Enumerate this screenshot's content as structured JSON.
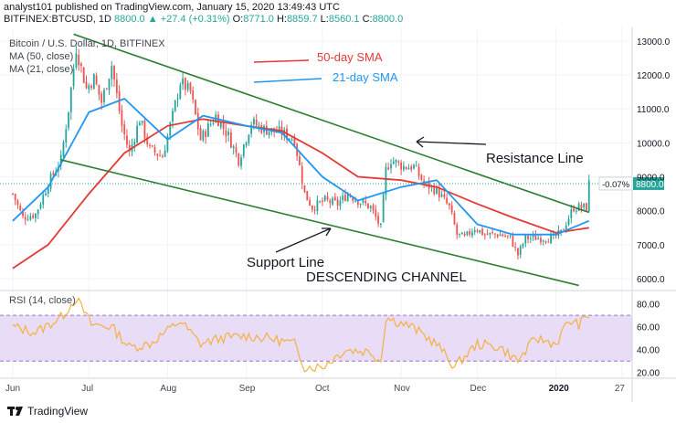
{
  "header": {
    "publish_line": "analyst101 published on TradingView.com, January 15, 2020 13:49:43 UTC",
    "ticker_line_prefix": "BITFINEX:BTCUSD, 1D",
    "last_price": "8800.0",
    "change": "▲ +27.4 (+0.31%)",
    "ohlc": {
      "o_label": "O:",
      "o": "8771.0",
      "h_label": "H:",
      "h": "8859.7",
      "l_label": "L:",
      "l": "8560.1",
      "c_label": "C:",
      "c": "8800.0"
    }
  },
  "legend": {
    "symbol": "Bitcoin / U.S. Dollar, 1D, BITFINEX",
    "ma50": "MA (50, close)",
    "ma21": "MA (21, close)",
    "rsi": "RSI (14, close)"
  },
  "annotations": {
    "sma50": "50-day SMA",
    "sma21": "21-day SMA",
    "resistance": "Resistance Line",
    "support": "Support Line",
    "channel": "DESCENDING CHANNEL"
  },
  "price_badge": {
    "pct": "-0.07%",
    "price": "8800.0"
  },
  "footer": {
    "brand": "TradingView"
  },
  "colors": {
    "up": "#26a69a",
    "down": "#ef5350",
    "sma50": "#e53935",
    "sma21": "#2196f3",
    "trend": "#2e7d32",
    "rsi_line": "#f5b041",
    "rsi_band": "#e8dcf7"
  },
  "chart_data": [
    {
      "type": "candlestick",
      "yaxis_ticks": [
        6000.0,
        7000.0,
        8000.0,
        9000.0,
        10000.0,
        11000.0,
        12000.0,
        13000.0
      ],
      "ylim": [
        5650,
        13400
      ],
      "xaxis_ticks": [
        "Jun",
        "Jul",
        "Aug",
        "Sep",
        "Oct",
        "Nov",
        "Dec",
        "2020",
        "27"
      ],
      "close_path": [
        [
          "2019-06-01",
          8500
        ],
        [
          "2019-06-05",
          7800
        ],
        [
          "2019-06-10",
          7900
        ],
        [
          "2019-06-15",
          8800
        ],
        [
          "2019-06-20",
          9500
        ],
        [
          "2019-06-23",
          11000
        ],
        [
          "2019-06-26",
          12800
        ],
        [
          "2019-06-30",
          11600
        ],
        [
          "2019-07-03",
          11900
        ],
        [
          "2019-07-06",
          11200
        ],
        [
          "2019-07-10",
          12300
        ],
        [
          "2019-07-14",
          10500
        ],
        [
          "2019-07-17",
          9700
        ],
        [
          "2019-07-21",
          10700
        ],
        [
          "2019-07-25",
          9800
        ],
        [
          "2019-07-30",
          9600
        ],
        [
          "2019-08-03",
          10800
        ],
        [
          "2019-08-06",
          11800
        ],
        [
          "2019-08-10",
          11500
        ],
        [
          "2019-08-14",
          10100
        ],
        [
          "2019-08-20",
          10800
        ],
        [
          "2019-08-25",
          10200
        ],
        [
          "2019-08-29",
          9500
        ],
        [
          "2019-09-03",
          10600
        ],
        [
          "2019-09-08",
          10400
        ],
        [
          "2019-09-15",
          10300
        ],
        [
          "2019-09-20",
          10100
        ],
        [
          "2019-09-24",
          8500
        ],
        [
          "2019-09-27",
          8100
        ],
        [
          "2019-10-02",
          8300
        ],
        [
          "2019-10-07",
          8200
        ],
        [
          "2019-10-11",
          8500
        ],
        [
          "2019-10-15",
          8300
        ],
        [
          "2019-10-20",
          8100
        ],
        [
          "2019-10-24",
          7500
        ],
        [
          "2019-10-26",
          9200
        ],
        [
          "2019-10-28",
          9500
        ],
        [
          "2019-11-02",
          9300
        ],
        [
          "2019-11-06",
          9300
        ],
        [
          "2019-11-10",
          8800
        ],
        [
          "2019-11-15",
          8600
        ],
        [
          "2019-11-20",
          8100
        ],
        [
          "2019-11-23",
          7300
        ],
        [
          "2019-11-26",
          7200
        ],
        [
          "2019-11-30",
          7500
        ],
        [
          "2019-12-04",
          7300
        ],
        [
          "2019-12-10",
          7300
        ],
        [
          "2019-12-14",
          7200
        ],
        [
          "2019-12-17",
          6700
        ],
        [
          "2019-12-20",
          7200
        ],
        [
          "2019-12-26",
          7200
        ],
        [
          "2019-12-31",
          7200
        ],
        [
          "2020-01-03",
          7350
        ],
        [
          "2020-01-06",
          7800
        ],
        [
          "2020-01-08",
          8100
        ],
        [
          "2020-01-11",
          8100
        ],
        [
          "2020-01-13",
          8100
        ],
        [
          "2020-01-14",
          8800
        ]
      ],
      "series": [
        {
          "name": "MA (50, close)",
          "points": [
            [
              "2019-06-01",
              6300
            ],
            [
              "2019-06-15",
              7000
            ],
            [
              "2019-07-01",
              8500
            ],
            [
              "2019-07-15",
              9700
            ],
            [
              "2019-08-01",
              10500
            ],
            [
              "2019-08-15",
              10700
            ],
            [
              "2019-09-01",
              10500
            ],
            [
              "2019-09-15",
              10350
            ],
            [
              "2019-10-01",
              9700
            ],
            [
              "2019-10-15",
              9000
            ],
            [
              "2019-11-01",
              8900
            ],
            [
              "2019-11-15",
              8700
            ],
            [
              "2019-12-01",
              8200
            ],
            [
              "2019-12-15",
              7800
            ],
            [
              "2020-01-01",
              7350
            ],
            [
              "2020-01-14",
              7500
            ]
          ]
        },
        {
          "name": "MA (21, close)",
          "points": [
            [
              "2019-06-01",
              7700
            ],
            [
              "2019-06-15",
              8700
            ],
            [
              "2019-07-01",
              10900
            ],
            [
              "2019-07-15",
              11300
            ],
            [
              "2019-08-01",
              10100
            ],
            [
              "2019-08-15",
              10800
            ],
            [
              "2019-09-01",
              10500
            ],
            [
              "2019-09-15",
              10300
            ],
            [
              "2019-10-01",
              9000
            ],
            [
              "2019-10-15",
              8300
            ],
            [
              "2019-11-01",
              8700
            ],
            [
              "2019-11-15",
              8900
            ],
            [
              "2019-12-01",
              7600
            ],
            [
              "2019-12-15",
              7300
            ],
            [
              "2020-01-01",
              7300
            ],
            [
              "2020-01-14",
              7700
            ]
          ]
        }
      ],
      "trendlines": [
        {
          "label": "Resistance Line",
          "from": [
            "2019-06-25",
            13200
          ],
          "to": [
            "2020-01-14",
            7950
          ]
        },
        {
          "label": "Support Line",
          "from": [
            "2019-06-20",
            9500
          ],
          "to": [
            "2020-01-10",
            5800
          ]
        }
      ]
    },
    {
      "type": "line",
      "yaxis_ticks": [
        20.0,
        40.0,
        60.0,
        80.0
      ],
      "ylim": [
        15,
        90
      ],
      "band": [
        30,
        70
      ],
      "series": [
        {
          "name": "RSI (14, close)",
          "points": [
            [
              "2019-06-01",
              60
            ],
            [
              "2019-06-10",
              55
            ],
            [
              "2019-06-20",
              68
            ],
            [
              "2019-06-26",
              85
            ],
            [
              "2019-07-02",
              62
            ],
            [
              "2019-07-10",
              60
            ],
            [
              "2019-07-17",
              42
            ],
            [
              "2019-07-25",
              45
            ],
            [
              "2019-08-06",
              65
            ],
            [
              "2019-08-14",
              45
            ],
            [
              "2019-08-22",
              50
            ],
            [
              "2019-09-01",
              52
            ],
            [
              "2019-09-10",
              50
            ],
            [
              "2019-09-20",
              45
            ],
            [
              "2019-09-24",
              25
            ],
            [
              "2019-10-01",
              25
            ],
            [
              "2019-10-10",
              40
            ],
            [
              "2019-10-20",
              38
            ],
            [
              "2019-10-24",
              30
            ],
            [
              "2019-10-26",
              68
            ],
            [
              "2019-11-05",
              60
            ],
            [
              "2019-11-15",
              45
            ],
            [
              "2019-11-22",
              25
            ],
            [
              "2019-12-01",
              45
            ],
            [
              "2019-12-10",
              42
            ],
            [
              "2019-12-17",
              30
            ],
            [
              "2019-12-24",
              50
            ],
            [
              "2020-01-01",
              45
            ],
            [
              "2020-01-06",
              65
            ],
            [
              "2020-01-10",
              62
            ],
            [
              "2020-01-14",
              70
            ]
          ]
        }
      ]
    }
  ]
}
